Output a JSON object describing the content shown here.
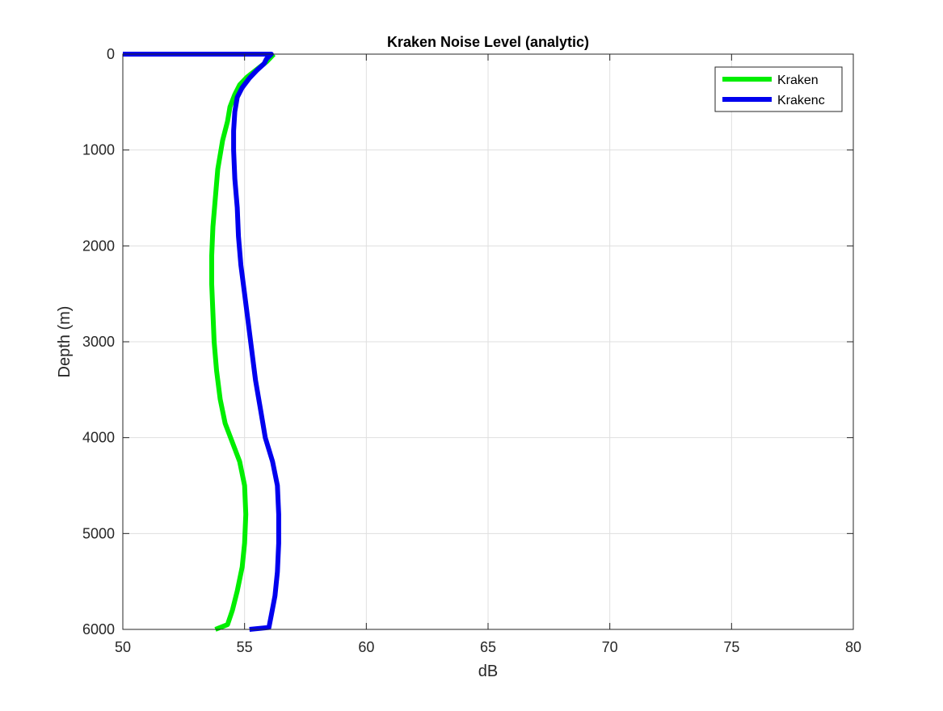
{
  "chart_data": {
    "type": "line",
    "title": "Kraken Noise Level (analytic)",
    "xlabel": "dB",
    "ylabel": "Depth (m)",
    "xlim": [
      50,
      80
    ],
    "ylim": [
      0,
      6000
    ],
    "y_reversed": true,
    "grid": true,
    "legend_placement": "top-right",
    "x_ticks": [
      50,
      55,
      60,
      65,
      70,
      75,
      80
    ],
    "y_ticks": [
      0,
      1000,
      2000,
      3000,
      4000,
      5000,
      6000
    ],
    "series": [
      {
        "name": "Kraken",
        "color": "#00ee00",
        "points": [
          [
            56.2,
            0
          ],
          [
            55.9,
            80
          ],
          [
            55.5,
            160
          ],
          [
            55.1,
            240
          ],
          [
            54.8,
            320
          ],
          [
            54.6,
            420
          ],
          [
            54.4,
            550
          ],
          [
            54.3,
            700
          ],
          [
            54.1,
            900
          ],
          [
            53.9,
            1200
          ],
          [
            53.8,
            1500
          ],
          [
            53.7,
            1800
          ],
          [
            53.65,
            2100
          ],
          [
            53.65,
            2400
          ],
          [
            53.7,
            2700
          ],
          [
            53.75,
            3000
          ],
          [
            53.85,
            3300
          ],
          [
            54.0,
            3600
          ],
          [
            54.2,
            3850
          ],
          [
            54.5,
            4050
          ],
          [
            54.8,
            4250
          ],
          [
            55.0,
            4500
          ],
          [
            55.05,
            4800
          ],
          [
            55.0,
            5100
          ],
          [
            54.9,
            5350
          ],
          [
            54.7,
            5600
          ],
          [
            54.5,
            5800
          ],
          [
            54.3,
            5950
          ],
          [
            53.8,
            6000
          ]
        ]
      },
      {
        "name": "Krakenc",
        "color": "#0000ee",
        "points": [
          [
            50.0,
            0
          ],
          [
            56.1,
            0
          ],
          [
            55.9,
            50
          ],
          [
            55.8,
            100
          ],
          [
            55.5,
            170
          ],
          [
            55.2,
            250
          ],
          [
            54.9,
            350
          ],
          [
            54.7,
            450
          ],
          [
            54.6,
            600
          ],
          [
            54.55,
            800
          ],
          [
            54.55,
            1000
          ],
          [
            54.6,
            1300
          ],
          [
            54.7,
            1600
          ],
          [
            54.75,
            1900
          ],
          [
            54.85,
            2200
          ],
          [
            55.0,
            2500
          ],
          [
            55.15,
            2800
          ],
          [
            55.3,
            3100
          ],
          [
            55.45,
            3400
          ],
          [
            55.65,
            3700
          ],
          [
            55.85,
            4000
          ],
          [
            56.15,
            4250
          ],
          [
            56.35,
            4500
          ],
          [
            56.4,
            4800
          ],
          [
            56.4,
            5100
          ],
          [
            56.35,
            5400
          ],
          [
            56.25,
            5650
          ],
          [
            56.1,
            5850
          ],
          [
            56.0,
            5980
          ],
          [
            55.2,
            6000
          ]
        ]
      }
    ]
  }
}
